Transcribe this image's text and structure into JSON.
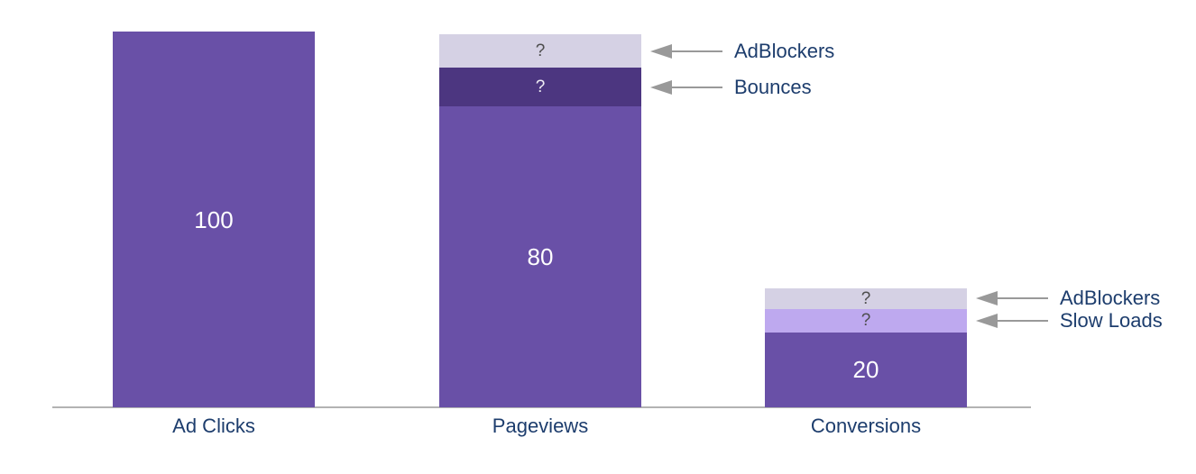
{
  "chart_data": {
    "type": "bar",
    "subtype": "stacked funnel with unknown segments",
    "title": "",
    "xlabel": "",
    "ylabel": "",
    "ylim": [
      0,
      100
    ],
    "grid": false,
    "legend": "none",
    "categories": [
      "Ad Clicks",
      "Pageviews",
      "Conversions"
    ],
    "colors": {
      "main_purple": "#6950a7",
      "dark_purple": "#4c3680",
      "light_lavender": "#d5d1e4",
      "light_purple": "#bea9ef",
      "arrow_gray": "#999999",
      "label_navy": "#1d3d6d",
      "axis_gray": "#b3b3b3"
    },
    "bars": [
      {
        "category": "Ad Clicks",
        "segments": [
          {
            "name": "ad-clicks-total",
            "label": "100",
            "value": 100,
            "units": 100,
            "color": "#6950a7",
            "label_color": "#ffffff"
          }
        ]
      },
      {
        "category": "Pageviews",
        "segments": [
          {
            "name": "pageviews-known",
            "label": "80",
            "value": 80,
            "units": 80,
            "color": "#6950a7",
            "label_color": "#ffffff"
          },
          {
            "name": "bounces-unknown",
            "label": "?",
            "value": "?",
            "units": 10.3,
            "color": "#4c3680",
            "label_color": "#f0eef5",
            "annotation": "Bounces"
          },
          {
            "name": "adblockers-unknown-pageviews",
            "label": "?",
            "value": "?",
            "units": 8.9,
            "color": "#d5d1e4",
            "label_color": "#4d4d4d",
            "annotation": "AdBlockers"
          }
        ]
      },
      {
        "category": "Conversions",
        "segments": [
          {
            "name": "conversions-known",
            "label": "20",
            "value": 20,
            "units": 20,
            "color": "#6950a7",
            "label_color": "#ffffff"
          },
          {
            "name": "slow-loads-unknown",
            "label": "?",
            "value": "?",
            "units": 6.2,
            "color": "#bea9ef",
            "label_color": "#4d4d4d",
            "annotation": "Slow Loads"
          },
          {
            "name": "adblockers-unknown-conversions",
            "label": "?",
            "value": "?",
            "units": 5.5,
            "color": "#d5d1e4",
            "label_color": "#4d4d4d",
            "annotation": "AdBlockers"
          }
        ]
      }
    ]
  }
}
